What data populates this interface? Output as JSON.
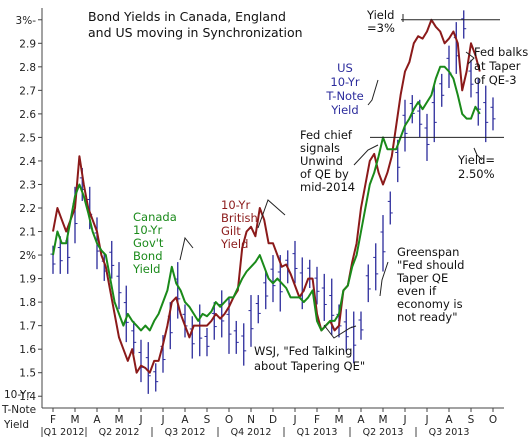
{
  "chart_data": {
    "type": "line",
    "title": "Bond Yields in Canada, England and US moving in Synchronization",
    "ylabel": "10-Yr T-Note Yield",
    "yticks": [
      "1.4",
      "1.5",
      "1.6",
      "1.7",
      "1.8",
      "1.9",
      "2%",
      "2.1",
      "2.2",
      "2.3",
      "2.4",
      "2.5",
      "2.6",
      "2.7",
      "2.8",
      "2.9",
      "3%-"
    ],
    "ylim": [
      1.35,
      3.05
    ],
    "months": [
      "F",
      "M",
      "A",
      "M",
      "J",
      "J",
      "A",
      "S",
      "O",
      "N",
      "D",
      "J",
      "F",
      "M",
      "A",
      "M",
      "J",
      "J",
      "A",
      "S",
      "O"
    ],
    "quarters": [
      "Q1 2012",
      "Q2 2012",
      "Q3 2012",
      "Q4 2012",
      "Q1 2013",
      "Q2 2013",
      "Q3 2013"
    ],
    "series": [
      {
        "name": "US 10-Yr T-Note Yield",
        "style": "ohlc",
        "color": "#2b2b9c",
        "x": [
          0.0,
          0.33,
          0.67,
          1.0,
          1.33,
          1.67,
          2.0,
          2.33,
          2.67,
          3.0,
          3.33,
          3.67,
          4.0,
          4.33,
          4.67,
          5.0,
          5.33,
          5.67,
          6.0,
          6.33,
          6.67,
          7.0,
          7.33,
          7.67,
          8.0,
          8.33,
          8.67,
          9.0,
          9.33,
          9.67,
          10.0,
          10.33,
          10.67,
          11.0,
          11.33,
          11.67,
          12.0,
          12.33,
          12.67,
          13.0,
          13.33,
          13.67,
          14.0,
          14.33,
          14.67,
          15.0,
          15.33,
          15.67,
          16.0,
          16.33,
          16.67,
          17.0,
          17.33,
          17.67,
          18.0,
          18.33,
          18.67,
          19.0,
          19.33,
          19.67,
          20.0
        ],
        "values": [
          1.98,
          2.0,
          2.02,
          2.17,
          2.3,
          2.2,
          2.05,
          1.95,
          1.98,
          1.87,
          1.75,
          1.65,
          1.55,
          1.52,
          1.48,
          1.58,
          1.7,
          1.85,
          1.72,
          1.65,
          1.68,
          1.63,
          1.72,
          1.75,
          1.7,
          1.65,
          1.62,
          1.72,
          1.77,
          1.85,
          1.9,
          1.88,
          1.95,
          1.97,
          1.88,
          1.92,
          1.87,
          1.82,
          1.78,
          1.72,
          1.68,
          1.65,
          1.7,
          1.88,
          1.95,
          2.05,
          2.2,
          2.4,
          2.55,
          2.62,
          2.58,
          2.5,
          2.6,
          2.7,
          2.8,
          2.88,
          2.98,
          2.75,
          2.65,
          2.6,
          2.6
        ]
      },
      {
        "name": "10-Yr British Gilt Yield",
        "style": "line",
        "color": "#8b1a1a",
        "x": [
          0.0,
          0.2,
          0.4,
          0.6,
          0.8,
          1.0,
          1.2,
          1.4,
          1.6,
          1.8,
          2.0,
          2.2,
          2.4,
          2.6,
          2.8,
          3.0,
          3.2,
          3.4,
          3.6,
          3.8,
          4.0,
          4.2,
          4.4,
          4.6,
          4.8,
          5.0,
          5.2,
          5.4,
          5.6,
          5.8,
          6.0,
          6.2,
          6.4,
          6.6,
          6.8,
          7.0,
          7.2,
          7.4,
          7.6,
          7.8,
          8.0,
          8.2,
          8.4,
          8.6,
          8.8,
          9.0,
          9.2,
          9.4,
          9.6,
          9.8,
          10.0,
          10.2,
          10.4,
          10.6,
          10.8,
          11.0,
          11.2,
          11.4,
          11.6,
          11.8,
          12.0,
          12.2,
          12.4,
          12.6,
          12.8,
          13.0,
          13.2,
          13.4,
          13.6,
          13.8,
          14.0,
          14.2,
          14.4,
          14.6,
          14.8,
          15.0,
          15.2,
          15.4,
          15.6,
          15.8,
          16.0,
          16.2,
          16.4,
          16.6,
          16.8,
          17.0,
          17.2,
          17.4,
          17.6,
          17.8,
          18.0,
          18.2,
          18.4,
          18.6,
          18.8,
          19.0,
          19.2,
          19.4
        ],
        "values": [
          2.1,
          2.2,
          2.15,
          2.1,
          2.15,
          2.2,
          2.42,
          2.3,
          2.2,
          2.15,
          2.1,
          2.0,
          1.95,
          1.85,
          1.75,
          1.65,
          1.6,
          1.55,
          1.6,
          1.5,
          1.53,
          1.52,
          1.5,
          1.55,
          1.55,
          1.62,
          1.7,
          1.8,
          1.82,
          1.75,
          1.7,
          1.65,
          1.7,
          1.7,
          1.7,
          1.7,
          1.72,
          1.75,
          1.73,
          1.75,
          1.78,
          1.82,
          1.85,
          2.03,
          2.1,
          2.12,
          2.08,
          2.2,
          2.15,
          2.05,
          2.05,
          2.0,
          1.95,
          1.96,
          1.92,
          1.87,
          1.82,
          1.85,
          1.9,
          1.9,
          1.75,
          1.68,
          1.7,
          1.72,
          1.68,
          1.7,
          1.85,
          1.87,
          1.97,
          2.05,
          2.2,
          2.3,
          2.4,
          2.43,
          2.35,
          2.3,
          2.35,
          2.42,
          2.55,
          2.68,
          2.78,
          2.82,
          2.9,
          2.93,
          2.92,
          2.95,
          3.0,
          2.97,
          2.95,
          2.9,
          2.92,
          2.95,
          2.9,
          2.7,
          2.78,
          2.9,
          2.85,
          2.78
        ]
      },
      {
        "name": "Canada 10-Yr Gov't Bond Yield",
        "style": "line",
        "color": "#1a8a1a",
        "x": [
          0.0,
          0.2,
          0.4,
          0.6,
          0.8,
          1.0,
          1.2,
          1.4,
          1.6,
          1.8,
          2.0,
          2.2,
          2.4,
          2.6,
          2.8,
          3.0,
          3.2,
          3.4,
          3.6,
          3.8,
          4.0,
          4.2,
          4.4,
          4.6,
          4.8,
          5.0,
          5.2,
          5.4,
          5.6,
          5.8,
          6.0,
          6.2,
          6.4,
          6.6,
          6.8,
          7.0,
          7.2,
          7.4,
          7.6,
          7.8,
          8.0,
          8.2,
          8.4,
          8.6,
          8.8,
          9.0,
          9.2,
          9.4,
          9.6,
          9.8,
          10.0,
          10.2,
          10.4,
          10.6,
          10.8,
          11.0,
          11.2,
          11.4,
          11.6,
          11.8,
          12.0,
          12.2,
          12.4,
          12.6,
          12.8,
          13.0,
          13.2,
          13.4,
          13.6,
          13.8,
          14.0,
          14.2,
          14.4,
          14.6,
          14.8,
          15.0,
          15.2,
          15.4,
          15.6,
          15.8,
          16.0,
          16.2,
          16.4,
          16.6,
          16.8,
          17.0,
          17.2,
          17.4,
          17.6,
          17.8,
          18.0,
          18.2,
          18.4,
          18.6,
          18.8,
          19.0,
          19.2,
          19.4
        ],
        "values": [
          2.0,
          2.1,
          2.05,
          2.05,
          2.15,
          2.25,
          2.3,
          2.25,
          2.18,
          2.1,
          2.05,
          2.02,
          2.0,
          1.9,
          1.8,
          1.75,
          1.7,
          1.75,
          1.72,
          1.7,
          1.68,
          1.7,
          1.68,
          1.72,
          1.75,
          1.8,
          1.85,
          1.95,
          1.88,
          1.85,
          1.8,
          1.78,
          1.75,
          1.72,
          1.75,
          1.74,
          1.76,
          1.8,
          1.78,
          1.8,
          1.82,
          1.82,
          1.86,
          1.9,
          1.93,
          1.95,
          1.97,
          2.0,
          1.95,
          1.9,
          1.88,
          1.9,
          1.88,
          1.86,
          1.82,
          1.82,
          1.82,
          1.8,
          1.82,
          1.85,
          1.72,
          1.68,
          1.7,
          1.72,
          1.72,
          1.75,
          1.85,
          1.87,
          1.95,
          2.0,
          2.1,
          2.2,
          2.3,
          2.35,
          2.42,
          2.5,
          2.45,
          2.45,
          2.45,
          2.5,
          2.55,
          2.58,
          2.62,
          2.65,
          2.62,
          2.65,
          2.68,
          2.75,
          2.8,
          2.8,
          2.78,
          2.75,
          2.68,
          2.6,
          2.58,
          2.58,
          2.63,
          2.6
        ]
      }
    ],
    "reference_lines": [
      3.0,
      2.5
    ],
    "grid": false,
    "legend": "none (direct labels)"
  },
  "annotations": {
    "us_label": [
      "US",
      "10-Yr",
      "T-Note",
      "Yield"
    ],
    "canada_label": [
      "Canada",
      "10-Yr",
      "Gov't",
      "Bond",
      "Yield"
    ],
    "gilt_label": [
      "10-Yr",
      "British",
      "Gilt",
      "Yield"
    ],
    "yield3": [
      "Yield",
      "=3%"
    ],
    "fed_balks": [
      "Fed balks",
      "at Taper",
      "of QE-3"
    ],
    "fed_chief": [
      "Fed chief",
      "signals",
      "Unwind",
      "of QE by",
      "mid-2014"
    ],
    "yield250": [
      "Yield=",
      "2.50%"
    ],
    "greenspan": [
      "Greenspan",
      "\"Fed should",
      "Taper QE",
      "even if",
      "economy is",
      "not ready\""
    ],
    "wsj": [
      "WSJ, \"Fed Talking",
      "about Tapering QE\""
    ]
  }
}
